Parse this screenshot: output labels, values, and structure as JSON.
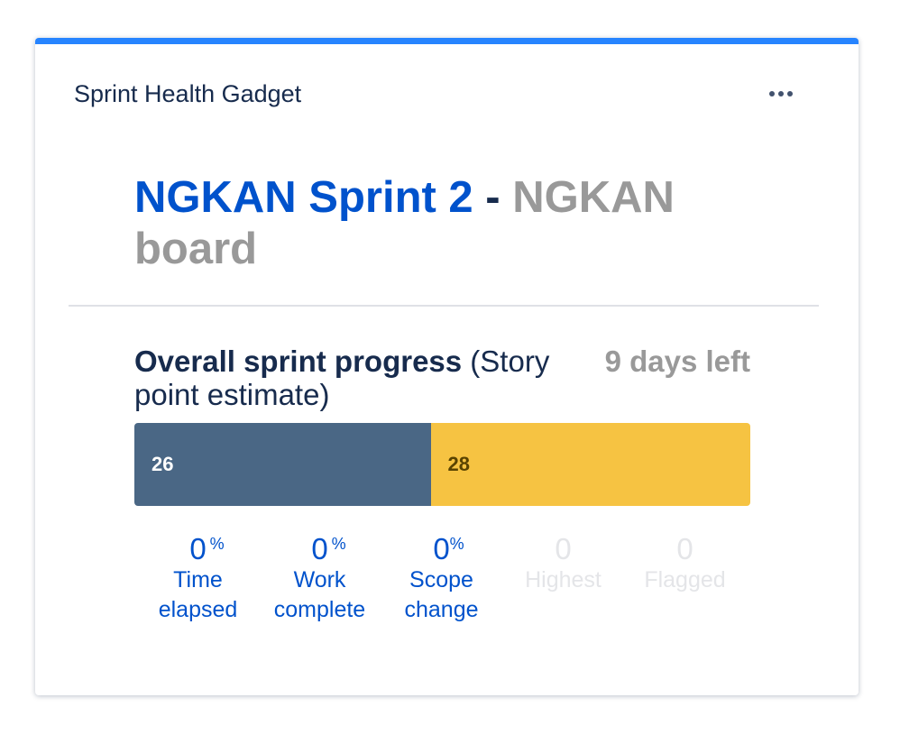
{
  "gadget": {
    "title": "Sprint Health Gadget",
    "menu_icon": "more-horizontal-icon",
    "accent_color": "#2684ff"
  },
  "sprint": {
    "name": "NGKAN Sprint 2",
    "separator": " - ",
    "board": "NGKAN board"
  },
  "progress": {
    "title_bold": "Overall sprint progress",
    "title_rest": " (Story point estimate)",
    "days_left": "9 days left",
    "done": {
      "value": "26",
      "fraction": 0.481,
      "color": "#4a6785"
    },
    "remaining": {
      "value": "28",
      "color": "#f6c342"
    }
  },
  "stats": [
    {
      "value": "0",
      "suffix": "%",
      "label_line1": "Time",
      "label_line2": "elapsed"
    },
    {
      "value": "0",
      "suffix": "%",
      "label_line1": "Work",
      "label_line2": "complete"
    },
    {
      "value": "0",
      "suffix": "%",
      "label_line1": "Scope",
      "label_line2": "change"
    },
    {
      "value": "0",
      "suffix": "",
      "label_line1": "Highest",
      "label_line2": ""
    },
    {
      "value": "0",
      "suffix": "",
      "label_line1": "Flagged",
      "label_line2": ""
    }
  ]
}
